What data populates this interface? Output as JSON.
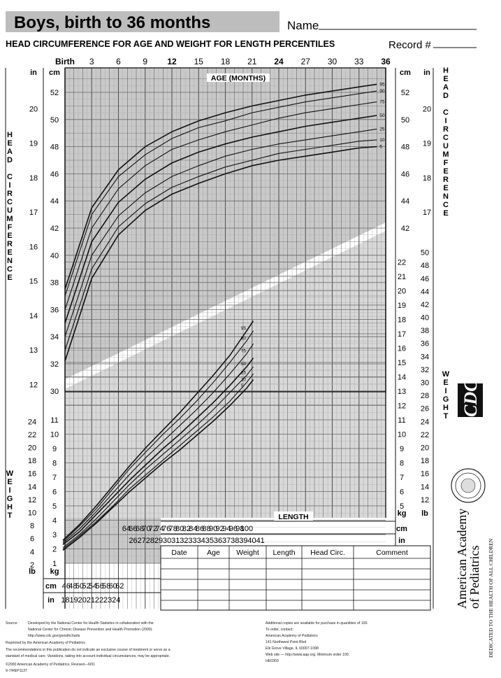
{
  "header": {
    "title": "Boys, birth to 36 months",
    "name_label": "Name",
    "subtitle": "HEAD CIRCUMFERENCE FOR AGE AND WEIGHT FOR LENGTH PERCENTILES",
    "record_label": "Record #"
  },
  "axes": {
    "age_title": "AGE (MONTHS)",
    "length_title": "LENGTH",
    "head_vertical": "HEAD CIRCUMFERENCE",
    "weight_vertical": "WEIGHT",
    "cm": "cm",
    "in": "in",
    "kg": "kg",
    "lb": "lb"
  },
  "table": {
    "columns": [
      "Date",
      "Age",
      "Weight",
      "Length",
      "Head Circ.",
      "Comment"
    ]
  },
  "footer": {
    "source_label": "Source:",
    "source_lines": [
      "Developed by the National Center for Health Statistics in collaboration with the",
      "National Center for Chronic Disease Prevention and Health Promotion (2000).",
      "http://www.cdc.gov/growthcharts"
    ],
    "reprinted": "Reprinted by the American Academy of Pediatrics",
    "rec_lines": [
      "The recommendations in this publication do not indicate an exclusive course of treatment or serve as a",
      "standard of medical care. Variations, taking into account individual circumstances, may be appropriate."
    ],
    "copyright": "©2000 American Academy of Pediatrics, Revised—6/01",
    "code": "9-7/REP1137",
    "right_lines": [
      "Additional copies are available for purchase in quantities of 100.",
      "To order, contact:",
      "American Academy of Pediatrics",
      "141 Northwest Point Blvd",
      "Elk Grove Village, IL 60007-1098",
      "Web site — http://www.aap.org. Minimum order 100.",
      "HE0303"
    ]
  },
  "logos": {
    "cdc": "CDC",
    "aap_name_1": "American Academy",
    "aap_name_2": "of Pediatrics",
    "aap_tagline": "DEDICATED TO THE HEALTH OF ALL CHILDREN"
  },
  "chart_data": [
    {
      "type": "line",
      "title": "HEAD CIRCUMFERENCE FOR AGE",
      "xlabel": "AGE (MONTHS)",
      "ylabel": "HEAD CIRCUMFERENCE",
      "x_tick_labels": [
        "Birth",
        "3",
        "6",
        "9",
        "12",
        "15",
        "18",
        "21",
        "24",
        "27",
        "30",
        "33",
        "36"
      ],
      "xlim": [
        0,
        36
      ],
      "ylim": [
        29,
        53
      ],
      "y_ticks_cm": [
        30,
        32,
        34,
        36,
        38,
        40,
        42,
        44,
        46,
        48,
        50,
        52
      ],
      "y_ticks_in": [
        12,
        13,
        14,
        15,
        16,
        17,
        18,
        19,
        20
      ],
      "grid": true,
      "x": [
        0,
        3,
        6,
        9,
        12,
        15,
        18,
        21,
        24,
        27,
        30,
        33,
        35
      ],
      "series": [
        {
          "name": "5",
          "values": [
            32.2,
            38.3,
            41.5,
            43.3,
            44.5,
            45.3,
            46.0,
            46.6,
            47.0,
            47.3,
            47.6,
            47.9,
            48.0
          ]
        },
        {
          "name": "10",
          "values": [
            33.0,
            39.0,
            42.1,
            43.8,
            45.0,
            45.8,
            46.5,
            47.0,
            47.5,
            47.8,
            48.1,
            48.4,
            48.5
          ]
        },
        {
          "name": "25",
          "values": [
            34.0,
            40.0,
            42.9,
            44.6,
            45.8,
            46.6,
            47.3,
            47.8,
            48.2,
            48.5,
            48.8,
            49.1,
            49.3
          ]
        },
        {
          "name": "50",
          "values": [
            35.0,
            41.0,
            43.9,
            45.6,
            46.8,
            47.6,
            48.2,
            48.7,
            49.1,
            49.5,
            49.8,
            50.1,
            50.3
          ]
        },
        {
          "name": "75",
          "values": [
            36.0,
            42.0,
            44.9,
            46.6,
            47.8,
            48.5,
            49.1,
            49.6,
            50.1,
            50.5,
            50.8,
            51.1,
            51.3
          ]
        },
        {
          "name": "90",
          "values": [
            37.0,
            43.0,
            45.8,
            47.4,
            48.6,
            49.4,
            49.9,
            50.5,
            50.9,
            51.3,
            51.6,
            51.9,
            52.1
          ]
        },
        {
          "name": "95",
          "values": [
            37.5,
            43.5,
            46.3,
            48.0,
            49.1,
            49.9,
            50.5,
            51.0,
            51.4,
            51.8,
            52.1,
            52.4,
            52.6
          ]
        }
      ]
    },
    {
      "type": "line",
      "title": "WEIGHT FOR LENGTH",
      "xlabel": "LENGTH",
      "ylabel": "WEIGHT",
      "x_tick_labels_cm": [
        "46",
        "48",
        "50",
        "52",
        "54",
        "56",
        "58",
        "60",
        "62",
        "64",
        "66",
        "68",
        "70",
        "72",
        "74",
        "76",
        "78",
        "80",
        "82",
        "84",
        "86",
        "88",
        "90",
        "92",
        "94",
        "96",
        "98",
        "100"
      ],
      "x_tick_labels_in": [
        "18",
        "19",
        "20",
        "21",
        "22",
        "23",
        "24",
        "26",
        "27",
        "28",
        "29",
        "30",
        "31",
        "32",
        "33",
        "34",
        "35",
        "36",
        "37",
        "38",
        "39",
        "40",
        "41"
      ],
      "xlim": [
        45,
        103
      ],
      "ylim": [
        1,
        24.5
      ],
      "y_ticks_kg_left": [
        1,
        2,
        3,
        4,
        5,
        6,
        7,
        8,
        9,
        10,
        11
      ],
      "y_ticks_lb_left": [
        2,
        4,
        6,
        8,
        10,
        12,
        14,
        16,
        18,
        20,
        22,
        24
      ],
      "y_ticks_kg_right": [
        5,
        6,
        7,
        8,
        9,
        10,
        11,
        12,
        13,
        14,
        15,
        16,
        17,
        18,
        19,
        20,
        21,
        22
      ],
      "y_ticks_lb_right": [
        12,
        14,
        16,
        18,
        20,
        22,
        24,
        26,
        28,
        30,
        32,
        34,
        36,
        38,
        40,
        42,
        44,
        46,
        48,
        50
      ],
      "grid": true,
      "x": [
        45,
        50,
        55,
        60,
        65,
        70,
        75,
        80,
        85,
        90,
        95,
        100,
        102
      ],
      "series": [
        {
          "name": "5",
          "values": [
            1.9,
            2.8,
            3.8,
            4.9,
            6.0,
            7.0,
            8.0,
            8.9,
            9.9,
            10.9,
            12.0,
            13.2,
            13.8
          ]
        },
        {
          "name": "10",
          "values": [
            2.0,
            2.9,
            3.9,
            5.0,
            6.2,
            7.2,
            8.2,
            9.2,
            10.2,
            11.2,
            12.3,
            13.6,
            14.2
          ]
        },
        {
          "name": "25",
          "values": [
            2.1,
            3.0,
            4.1,
            5.3,
            6.5,
            7.6,
            8.6,
            9.6,
            10.6,
            11.7,
            12.9,
            14.1,
            14.7
          ]
        },
        {
          "name": "50",
          "values": [
            2.3,
            3.2,
            4.4,
            5.6,
            6.8,
            7.9,
            9.0,
            10.0,
            11.1,
            12.2,
            13.4,
            14.7,
            15.3
          ]
        },
        {
          "name": "75",
          "values": [
            2.4,
            3.4,
            4.6,
            5.9,
            7.2,
            8.4,
            9.5,
            10.6,
            11.7,
            12.9,
            14.2,
            15.6,
            16.3
          ]
        },
        {
          "name": "90",
          "values": [
            2.5,
            3.6,
            4.8,
            6.2,
            7.6,
            8.8,
            10.0,
            11.1,
            12.3,
            13.6,
            15.0,
            16.5,
            17.2
          ]
        },
        {
          "name": "95",
          "values": [
            2.6,
            3.7,
            5.0,
            6.4,
            7.8,
            9.1,
            10.3,
            11.5,
            12.8,
            14.1,
            15.5,
            17.2,
            17.9
          ]
        }
      ]
    }
  ]
}
